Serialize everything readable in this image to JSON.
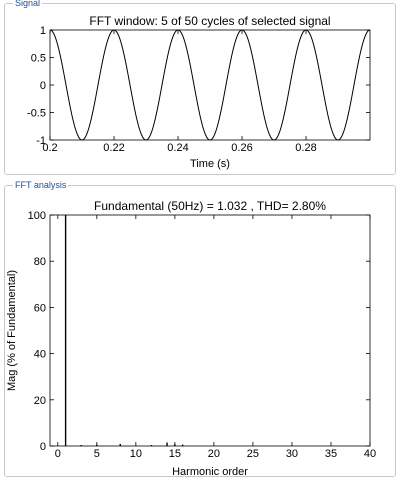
{
  "panels": {
    "signal_label": "Signal",
    "fft_label": "FFT analysis"
  },
  "chart_data": [
    {
      "type": "line",
      "title": "FFT window: 5 of 50 cycles of selected signal",
      "xlabel": "Time (s)",
      "ylabel": "",
      "xlim": [
        0.2,
        0.3
      ],
      "ylim": [
        -1,
        1
      ],
      "xticks": [
        0.2,
        0.22,
        0.24,
        0.26,
        0.28
      ],
      "xtick_labels": [
        "0.2",
        "0.22",
        "0.24",
        "0.26",
        "0.28"
      ],
      "yticks": [
        1,
        0.5,
        0,
        -0.5,
        -1
      ],
      "ytick_labels": [
        "1",
        "0.5",
        "0",
        "-0.5",
        "-1"
      ],
      "series": [
        {
          "function": "cosine",
          "amplitude": 1,
          "frequency_hz": 50,
          "x_start": 0.2,
          "x_end": 0.3
        }
      ],
      "grid": false
    },
    {
      "type": "bar",
      "title": "Fundamental (50Hz) = 1.032 , THD= 2.80%",
      "xlabel": "Harmonic order",
      "ylabel": "Mag (% of Fundamental)",
      "xlim": [
        -1,
        40
      ],
      "ylim": [
        0,
        100
      ],
      "xticks": [
        0,
        5,
        10,
        15,
        20,
        25,
        30,
        35,
        40
      ],
      "xtick_labels": [
        "0",
        "5",
        "10",
        "15",
        "20",
        "25",
        "30",
        "35",
        "40"
      ],
      "yticks": [
        0,
        20,
        40,
        60,
        80,
        100
      ],
      "ytick_labels": [
        "0",
        "20",
        "40",
        "60",
        "80",
        "100"
      ],
      "x": [
        1,
        3,
        5,
        8,
        12,
        14,
        15,
        16
      ],
      "values": [
        100,
        0.3,
        0.6,
        0.9,
        0.3,
        1.5,
        0.8,
        0.6
      ],
      "grid": false
    }
  ]
}
